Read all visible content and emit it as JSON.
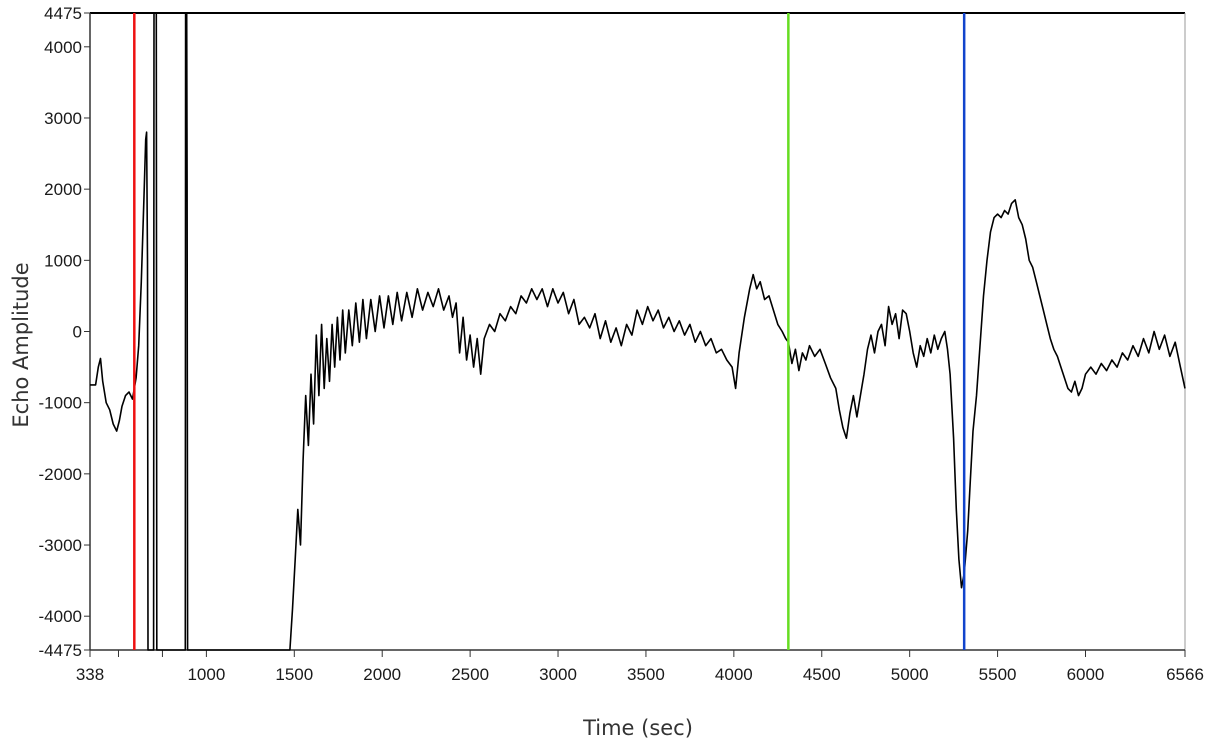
{
  "chart_data": {
    "type": "line",
    "title": "",
    "xlabel": "Time (sec)",
    "ylabel": "Echo Amplitude",
    "xlim": [
      338,
      6566
    ],
    "ylim": [
      -4475,
      4475
    ],
    "x_ticks": [
      338,
      1000,
      1500,
      2000,
      2500,
      3000,
      3500,
      4000,
      4500,
      5000,
      5500,
      6000,
      6566
    ],
    "x_minor_ticks": [
      500,
      750
    ],
    "y_ticks": [
      4475,
      4000,
      3000,
      2000,
      1000,
      0,
      -1000,
      -2000,
      -3000,
      -4000,
      -4475
    ],
    "grid": false,
    "legend": "none",
    "series": [
      {
        "color": "#000000",
        "points": [
          [
            338,
            -750
          ],
          [
            370,
            -750
          ],
          [
            385,
            -500
          ],
          [
            398,
            -380
          ],
          [
            410,
            -700
          ],
          [
            430,
            -1000
          ],
          [
            450,
            -1100
          ],
          [
            470,
            -1300
          ],
          [
            490,
            -1400
          ],
          [
            505,
            -1250
          ],
          [
            520,
            -1050
          ],
          [
            540,
            -900
          ],
          [
            560,
            -850
          ],
          [
            580,
            -950
          ],
          [
            600,
            -650
          ],
          [
            615,
            -200
          ],
          [
            630,
            700
          ],
          [
            645,
            1900
          ],
          [
            655,
            2700
          ],
          [
            660,
            2800
          ],
          [
            665,
            1000
          ],
          [
            668,
            -4475
          ],
          [
            700,
            -4475
          ],
          [
            702,
            4475
          ],
          [
            715,
            4475
          ],
          [
            718,
            -4475
          ],
          [
            880,
            -4475
          ],
          [
            882,
            4475
          ],
          [
            888,
            4475
          ],
          [
            890,
            2100
          ],
          [
            893,
            -4475
          ],
          [
            1475,
            -4475
          ],
          [
            1490,
            -3900
          ],
          [
            1505,
            -3200
          ],
          [
            1520,
            -2500
          ],
          [
            1535,
            -3000
          ],
          [
            1550,
            -1800
          ],
          [
            1565,
            -900
          ],
          [
            1580,
            -1600
          ],
          [
            1595,
            -600
          ],
          [
            1610,
            -1300
          ],
          [
            1625,
            -50
          ],
          [
            1640,
            -900
          ],
          [
            1655,
            100
          ],
          [
            1670,
            -800
          ],
          [
            1685,
            -100
          ],
          [
            1700,
            -700
          ],
          [
            1715,
            100
          ],
          [
            1730,
            -500
          ],
          [
            1745,
            200
          ],
          [
            1760,
            -400
          ],
          [
            1775,
            300
          ],
          [
            1790,
            -300
          ],
          [
            1810,
            300
          ],
          [
            1830,
            -200
          ],
          [
            1850,
            400
          ],
          [
            1870,
            -150
          ],
          [
            1890,
            450
          ],
          [
            1910,
            -100
          ],
          [
            1935,
            450
          ],
          [
            1960,
            0
          ],
          [
            1985,
            500
          ],
          [
            2010,
            50
          ],
          [
            2035,
            500
          ],
          [
            2060,
            100
          ],
          [
            2085,
            550
          ],
          [
            2110,
            150
          ],
          [
            2140,
            550
          ],
          [
            2170,
            200
          ],
          [
            2200,
            600
          ],
          [
            2230,
            300
          ],
          [
            2260,
            550
          ],
          [
            2290,
            350
          ],
          [
            2320,
            600
          ],
          [
            2350,
            300
          ],
          [
            2380,
            500
          ],
          [
            2400,
            200
          ],
          [
            2420,
            400
          ],
          [
            2440,
            -300
          ],
          [
            2460,
            200
          ],
          [
            2480,
            -400
          ],
          [
            2500,
            -50
          ],
          [
            2520,
            -500
          ],
          [
            2540,
            -100
          ],
          [
            2560,
            -600
          ],
          [
            2580,
            -100
          ],
          [
            2610,
            100
          ],
          [
            2640,
            0
          ],
          [
            2670,
            250
          ],
          [
            2700,
            150
          ],
          [
            2730,
            350
          ],
          [
            2760,
            250
          ],
          [
            2790,
            500
          ],
          [
            2820,
            400
          ],
          [
            2850,
            600
          ],
          [
            2880,
            450
          ],
          [
            2910,
            600
          ],
          [
            2940,
            350
          ],
          [
            2970,
            600
          ],
          [
            3000,
            400
          ],
          [
            3030,
            550
          ],
          [
            3060,
            250
          ],
          [
            3090,
            450
          ],
          [
            3120,
            100
          ],
          [
            3150,
            200
          ],
          [
            3180,
            50
          ],
          [
            3210,
            250
          ],
          [
            3240,
            -100
          ],
          [
            3270,
            150
          ],
          [
            3300,
            -150
          ],
          [
            3330,
            50
          ],
          [
            3360,
            -200
          ],
          [
            3390,
            100
          ],
          [
            3420,
            -50
          ],
          [
            3450,
            300
          ],
          [
            3480,
            100
          ],
          [
            3510,
            350
          ],
          [
            3540,
            150
          ],
          [
            3570,
            300
          ],
          [
            3600,
            50
          ],
          [
            3630,
            200
          ],
          [
            3660,
            0
          ],
          [
            3690,
            150
          ],
          [
            3720,
            -50
          ],
          [
            3750,
            100
          ],
          [
            3780,
            -150
          ],
          [
            3810,
            0
          ],
          [
            3840,
            -200
          ],
          [
            3870,
            -100
          ],
          [
            3900,
            -300
          ],
          [
            3930,
            -250
          ],
          [
            3960,
            -400
          ],
          [
            3990,
            -500
          ],
          [
            4010,
            -800
          ],
          [
            4030,
            -300
          ],
          [
            4060,
            200
          ],
          [
            4090,
            600
          ],
          [
            4110,
            800
          ],
          [
            4130,
            600
          ],
          [
            4150,
            700
          ],
          [
            4175,
            450
          ],
          [
            4200,
            500
          ],
          [
            4225,
            300
          ],
          [
            4250,
            100
          ],
          [
            4275,
            0
          ],
          [
            4295,
            -100
          ],
          [
            4310,
            -150
          ],
          [
            4330,
            -450
          ],
          [
            4350,
            -250
          ],
          [
            4370,
            -550
          ],
          [
            4390,
            -300
          ],
          [
            4410,
            -400
          ],
          [
            4430,
            -200
          ],
          [
            4460,
            -350
          ],
          [
            4490,
            -250
          ],
          [
            4520,
            -450
          ],
          [
            4550,
            -650
          ],
          [
            4580,
            -800
          ],
          [
            4600,
            -1100
          ],
          [
            4620,
            -1350
          ],
          [
            4640,
            -1500
          ],
          [
            4660,
            -1150
          ],
          [
            4680,
            -900
          ],
          [
            4700,
            -1200
          ],
          [
            4720,
            -900
          ],
          [
            4740,
            -600
          ],
          [
            4760,
            -250
          ],
          [
            4780,
            -50
          ],
          [
            4800,
            -300
          ],
          [
            4820,
            0
          ],
          [
            4840,
            100
          ],
          [
            4860,
            -200
          ],
          [
            4880,
            350
          ],
          [
            4900,
            100
          ],
          [
            4920,
            250
          ],
          [
            4940,
            -100
          ],
          [
            4960,
            300
          ],
          [
            4980,
            250
          ],
          [
            5000,
            0
          ],
          [
            5020,
            -300
          ],
          [
            5040,
            -500
          ],
          [
            5060,
            -200
          ],
          [
            5080,
            -350
          ],
          [
            5100,
            -100
          ],
          [
            5120,
            -300
          ],
          [
            5140,
            -50
          ],
          [
            5160,
            -250
          ],
          [
            5180,
            -100
          ],
          [
            5200,
            0
          ],
          [
            5215,
            -250
          ],
          [
            5230,
            -600
          ],
          [
            5250,
            -1500
          ],
          [
            5265,
            -2500
          ],
          [
            5280,
            -3200
          ],
          [
            5295,
            -3600
          ],
          [
            5310,
            -3400
          ],
          [
            5330,
            -2800
          ],
          [
            5345,
            -2100
          ],
          [
            5360,
            -1400
          ],
          [
            5380,
            -900
          ],
          [
            5400,
            -200
          ],
          [
            5420,
            500
          ],
          [
            5440,
            1000
          ],
          [
            5460,
            1400
          ],
          [
            5480,
            1600
          ],
          [
            5500,
            1650
          ],
          [
            5520,
            1600
          ],
          [
            5540,
            1700
          ],
          [
            5560,
            1650
          ],
          [
            5580,
            1800
          ],
          [
            5600,
            1850
          ],
          [
            5620,
            1600
          ],
          [
            5640,
            1500
          ],
          [
            5660,
            1300
          ],
          [
            5680,
            1000
          ],
          [
            5700,
            900
          ],
          [
            5720,
            700
          ],
          [
            5740,
            500
          ],
          [
            5760,
            300
          ],
          [
            5780,
            100
          ],
          [
            5800,
            -100
          ],
          [
            5820,
            -250
          ],
          [
            5840,
            -350
          ],
          [
            5860,
            -500
          ],
          [
            5880,
            -650
          ],
          [
            5900,
            -800
          ],
          [
            5920,
            -850
          ],
          [
            5940,
            -700
          ],
          [
            5960,
            -900
          ],
          [
            5980,
            -800
          ],
          [
            6000,
            -600
          ],
          [
            6030,
            -500
          ],
          [
            6060,
            -600
          ],
          [
            6090,
            -450
          ],
          [
            6120,
            -550
          ],
          [
            6150,
            -400
          ],
          [
            6180,
            -500
          ],
          [
            6210,
            -300
          ],
          [
            6240,
            -400
          ],
          [
            6270,
            -200
          ],
          [
            6300,
            -350
          ],
          [
            6330,
            -100
          ],
          [
            6360,
            -300
          ],
          [
            6390,
            0
          ],
          [
            6420,
            -250
          ],
          [
            6450,
            -50
          ],
          [
            6480,
            -350
          ],
          [
            6510,
            -150
          ],
          [
            6540,
            -500
          ],
          [
            6566,
            -800
          ]
        ]
      }
    ],
    "markers": [
      {
        "x": 590,
        "color": "#ee1111"
      },
      {
        "x": 4310,
        "color": "#66dd22"
      },
      {
        "x": 5310,
        "color": "#1144cc"
      }
    ]
  }
}
